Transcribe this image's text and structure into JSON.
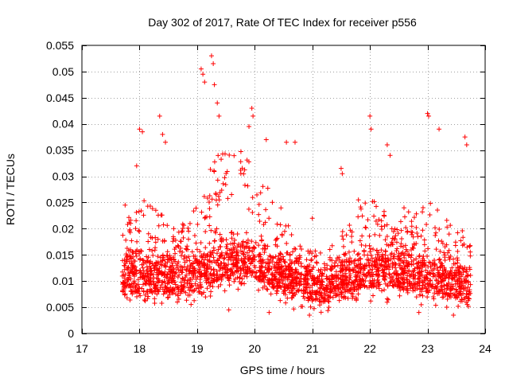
{
  "chart_data": {
    "type": "scatter",
    "title": "Day 302 of 2017, Rate Of TEC Index for receiver p556",
    "xlabel": "GPS time / hours",
    "ylabel": "ROTI / TECUs",
    "xlim": [
      17,
      24
    ],
    "ylim": [
      0,
      0.055
    ],
    "xticks": [
      17,
      18,
      19,
      20,
      21,
      22,
      23,
      24
    ],
    "xtick_labels": [
      "17",
      "18",
      "19",
      "20",
      "21",
      "22",
      "23",
      "24"
    ],
    "yticks": [
      0,
      0.005,
      0.01,
      0.015,
      0.02,
      0.025,
      0.03,
      0.035,
      0.04,
      0.045,
      0.05,
      0.055
    ],
    "ytick_labels": [
      "0",
      "0.005",
      "0.01",
      "0.015",
      "0.02",
      "0.025",
      "0.03",
      "0.035",
      "0.04",
      "0.045",
      "0.05",
      "0.055"
    ],
    "grid": true,
    "marker": "+",
    "color": "#ff0000",
    "series": [
      {
        "name": "p556",
        "x_range": [
          17.7,
          23.75
        ],
        "profile": [
          {
            "x": 17.7,
            "base": 0.011,
            "spread": 0.012
          },
          {
            "x": 18.0,
            "base": 0.011,
            "spread": 0.018
          },
          {
            "x": 18.5,
            "base": 0.011,
            "spread": 0.014
          },
          {
            "x": 19.0,
            "base": 0.011,
            "spread": 0.016
          },
          {
            "x": 19.3,
            "base": 0.013,
            "spread": 0.024
          },
          {
            "x": 19.9,
            "base": 0.014,
            "spread": 0.026
          },
          {
            "x": 20.3,
            "base": 0.012,
            "spread": 0.018
          },
          {
            "x": 20.8,
            "base": 0.01,
            "spread": 0.012
          },
          {
            "x": 21.2,
            "base": 0.009,
            "spread": 0.008
          },
          {
            "x": 21.6,
            "base": 0.011,
            "spread": 0.014
          },
          {
            "x": 22.0,
            "base": 0.012,
            "spread": 0.017
          },
          {
            "x": 22.5,
            "base": 0.012,
            "spread": 0.015
          },
          {
            "x": 23.0,
            "base": 0.011,
            "spread": 0.018
          },
          {
            "x": 23.4,
            "base": 0.01,
            "spread": 0.015
          },
          {
            "x": 23.75,
            "base": 0.009,
            "spread": 0.012
          }
        ],
        "outliers": [
          [
            19.07,
            0.0505
          ],
          [
            19.1,
            0.0495
          ],
          [
            19.13,
            0.048
          ],
          [
            19.25,
            0.053
          ],
          [
            19.28,
            0.0515
          ],
          [
            19.3,
            0.0475
          ],
          [
            19.35,
            0.044
          ],
          [
            19.38,
            0.0415
          ],
          [
            19.95,
            0.043
          ],
          [
            19.97,
            0.0415
          ],
          [
            19.9,
            0.0395
          ],
          [
            18.0,
            0.039
          ],
          [
            18.05,
            0.0385
          ],
          [
            18.35,
            0.0415
          ],
          [
            18.4,
            0.038
          ],
          [
            18.45,
            0.0365
          ],
          [
            22.0,
            0.0415
          ],
          [
            22.02,
            0.039
          ],
          [
            23.0,
            0.042
          ],
          [
            23.02,
            0.0415
          ],
          [
            23.2,
            0.039
          ],
          [
            23.65,
            0.0375
          ],
          [
            23.68,
            0.036
          ],
          [
            20.2,
            0.037
          ],
          [
            20.55,
            0.0365
          ],
          [
            20.7,
            0.0365
          ],
          [
            21.5,
            0.0315
          ],
          [
            21.52,
            0.0305
          ],
          [
            22.3,
            0.036
          ],
          [
            22.35,
            0.034
          ],
          [
            20.95,
            0.0035
          ],
          [
            22.85,
            0.004
          ],
          [
            23.45,
            0.0035
          ],
          [
            19.55,
            0.0045
          ],
          [
            20.25,
            0.004
          ],
          [
            17.75,
            0.0245
          ],
          [
            17.95,
            0.032
          ],
          [
            18.85,
            0.018
          ],
          [
            21.0,
            0.022
          ],
          [
            21.8,
            0.0255
          ]
        ]
      }
    ]
  }
}
